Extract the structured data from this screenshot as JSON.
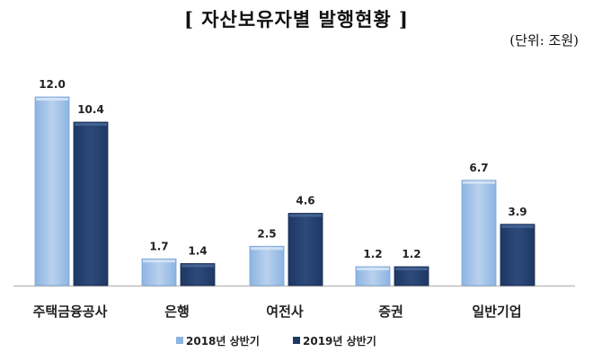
{
  "chart_data": {
    "type": "bar",
    "title": "[ 자산보유자별 발행현황 ]",
    "unit": "(단위: 조원)",
    "categories": [
      "주택금융공사",
      "은행",
      "여전사",
      "증권",
      "일반기업"
    ],
    "series": [
      {
        "name": "2018년 상반기",
        "values": [
          12.0,
          1.7,
          2.5,
          1.2,
          6.7
        ],
        "color": "#8db4e2"
      },
      {
        "name": "2019년 상반기",
        "values": [
          10.4,
          1.4,
          4.6,
          1.2,
          3.9
        ],
        "color": "#1f3864"
      }
    ],
    "ylim": [
      0,
      12.0
    ],
    "grid": false,
    "legend": "bottom"
  }
}
